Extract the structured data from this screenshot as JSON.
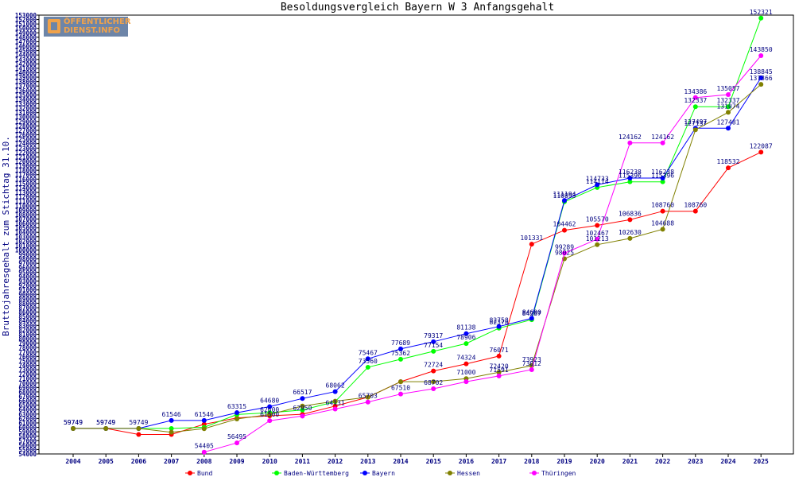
{
  "logo": {
    "line1": "ÖFFENTLICHER",
    "line2": "DIENST.INFO"
  },
  "chart_data": {
    "type": "line",
    "title": "Besoldungsvergleich Bayern W 3 Anfangsgehalt",
    "ylabel": "Bruttojahresgehalt zum Stichtag 31.10.",
    "xlabel": "",
    "x": [
      "2004",
      "2005",
      "2006",
      "2007",
      "2008",
      "2009",
      "2010",
      "2011",
      "2012",
      "2013",
      "2014",
      "2015",
      "2016",
      "2017",
      "2018",
      "2019",
      "2020",
      "2021",
      "2022",
      "2023",
      "2024",
      "2025"
    ],
    "ylim": [
      54000,
      153000
    ],
    "ytick_step": 1000,
    "grid": false,
    "legend_position": "bottom",
    "series": [
      {
        "name": "Bund",
        "color": "#ff0000",
        "values": [
          59749,
          59749,
          58400,
          58400,
          60700,
          62100,
          62600,
          62950,
          64800,
          66800,
          70297,
          72724,
          74324,
          76071,
          101331,
          104462,
          105570,
          106836,
          108760,
          108760,
          118532,
          122087
        ],
        "labels": [
          true,
          true,
          false,
          false,
          false,
          false,
          true,
          true,
          false,
          false,
          false,
          true,
          true,
          true,
          true,
          true,
          true,
          true,
          true,
          true,
          true,
          true
        ]
      },
      {
        "name": "Baden-Württemberg",
        "color": "#00ff00",
        "values": [
          59749,
          59749,
          59749,
          59749,
          60000,
          62900,
          63300,
          63900,
          65800,
          73560,
          75362,
          77154,
          78906,
          82378,
          84287,
          110893,
          114114,
          115396,
          115396,
          132337,
          132337,
          152321
        ],
        "labels": [
          false,
          false,
          false,
          false,
          false,
          false,
          false,
          false,
          false,
          true,
          true,
          true,
          true,
          true,
          true,
          true,
          true,
          true,
          true,
          true,
          true,
          true
        ]
      },
      {
        "name": "Bayern",
        "color": "#0000ff",
        "values": [
          59749,
          59749,
          59749,
          61546,
          61546,
          63315,
          64680,
          66517,
          68062,
          75467,
          77689,
          79317,
          81138,
          82758,
          84600,
          111194,
          114733,
          116238,
          116238,
          127497,
          127481,
          138845
        ],
        "labels": [
          true,
          true,
          true,
          true,
          true,
          true,
          true,
          true,
          true,
          true,
          true,
          true,
          true,
          true,
          true,
          true,
          true,
          true,
          true,
          true,
          true,
          true
        ]
      },
      {
        "name": "Hessen",
        "color": "#808000",
        "values": [
          59749,
          59749,
          59749,
          58900,
          59700,
          61900,
          62900,
          64800,
          65900,
          66800,
          70297,
          70297,
          71000,
          72420,
          73923,
          98025,
          101213,
          102630,
          104688,
          127137,
          131074,
          137366
        ],
        "labels": [
          false,
          false,
          false,
          false,
          false,
          false,
          false,
          false,
          false,
          false,
          false,
          false,
          true,
          true,
          true,
          true,
          true,
          true,
          true,
          true,
          true,
          true
        ]
      },
      {
        "name": "Thüringen",
        "color": "#ff00ff",
        "values": [
          null,
          null,
          null,
          null,
          54405,
          56495,
          61500,
          62550,
          64131,
          65703,
          67510,
          68702,
          70297,
          71591,
          73012,
          99289,
          102467,
          124162,
          124162,
          134386,
          135057,
          143850
        ],
        "labels": [
          false,
          false,
          false,
          false,
          true,
          true,
          true,
          false,
          true,
          true,
          true,
          true,
          false,
          true,
          true,
          true,
          true,
          true,
          true,
          true,
          true,
          true
        ]
      }
    ]
  }
}
